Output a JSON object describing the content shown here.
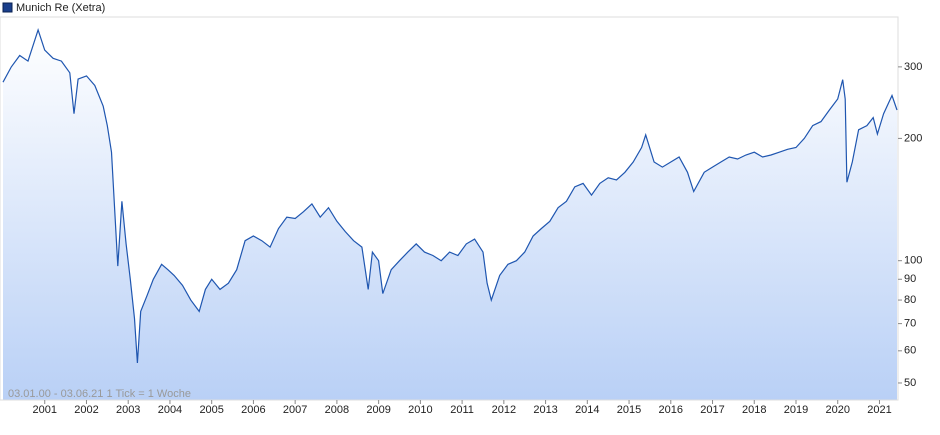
{
  "chart_data": {
    "type": "line",
    "log_scale": true,
    "grid": false,
    "legend": "top-left",
    "annotation": "03.01.00 - 03.06.21   1 Tick = 1 Woche",
    "x": [
      2000.0,
      2000.2,
      2000.4,
      2000.6,
      2000.84,
      2001.0,
      2001.2,
      2001.4,
      2001.6,
      2001.7,
      2001.8,
      2002.0,
      2002.2,
      2002.4,
      2002.5,
      2002.6,
      2002.75,
      2002.85,
      2002.95,
      2003.05,
      2003.15,
      2003.22,
      2003.3,
      2003.45,
      2003.6,
      2003.8,
      2003.95,
      2004.1,
      2004.3,
      2004.5,
      2004.7,
      2004.85,
      2005.0,
      2005.2,
      2005.4,
      2005.6,
      2005.8,
      2006.0,
      2006.2,
      2006.4,
      2006.6,
      2006.8,
      2007.0,
      2007.2,
      2007.4,
      2007.6,
      2007.8,
      2008.0,
      2008.2,
      2008.4,
      2008.6,
      2008.75,
      2008.85,
      2009.0,
      2009.1,
      2009.3,
      2009.5,
      2009.7,
      2009.9,
      2010.1,
      2010.3,
      2010.5,
      2010.7,
      2010.9,
      2011.1,
      2011.3,
      2011.5,
      2011.6,
      2011.7,
      2011.9,
      2012.1,
      2012.3,
      2012.5,
      2012.7,
      2012.9,
      2013.1,
      2013.3,
      2013.5,
      2013.7,
      2013.9,
      2014.1,
      2014.3,
      2014.5,
      2014.7,
      2014.9,
      2015.1,
      2015.3,
      2015.4,
      2015.6,
      2015.8,
      2016.0,
      2016.2,
      2016.4,
      2016.55,
      2016.8,
      2017.0,
      2017.2,
      2017.4,
      2017.6,
      2017.8,
      2018.0,
      2018.2,
      2018.4,
      2018.6,
      2018.8,
      2019.0,
      2019.2,
      2019.4,
      2019.6,
      2019.8,
      2020.0,
      2020.12,
      2020.18,
      2020.22,
      2020.35,
      2020.5,
      2020.7,
      2020.85,
      2020.95,
      2021.1,
      2021.3,
      2021.42
    ],
    "series": [
      {
        "name": "Munich Re (Xetra)",
        "color": "#1f56b0",
        "values": [
          275,
          300,
          320,
          310,
          370,
          330,
          315,
          310,
          290,
          230,
          280,
          285,
          270,
          240,
          215,
          185,
          97,
          140,
          110,
          90,
          72,
          56,
          75,
          82,
          90,
          98,
          95,
          92,
          87,
          80,
          75,
          85,
          90,
          85,
          88,
          95,
          112,
          115,
          112,
          108,
          120,
          128,
          127,
          132,
          138,
          128,
          135,
          125,
          118,
          112,
          108,
          85,
          105,
          100,
          83,
          95,
          100,
          105,
          110,
          105,
          103,
          100,
          105,
          103,
          110,
          113,
          105,
          88,
          80,
          92,
          98,
          100,
          105,
          115,
          120,
          125,
          135,
          140,
          152,
          155,
          145,
          155,
          160,
          158,
          165,
          175,
          190,
          204,
          175,
          170,
          175,
          180,
          165,
          148,
          165,
          170,
          175,
          180,
          178,
          182,
          185,
          180,
          182,
          185,
          188,
          190,
          200,
          215,
          220,
          235,
          250,
          279,
          250,
          156,
          175,
          210,
          215,
          225,
          205,
          230,
          255,
          235
        ]
      }
    ],
    "xlim": [
      2000.0,
      2021.42
    ],
    "xticks": [
      2001,
      2002,
      2003,
      2004,
      2005,
      2006,
      2007,
      2008,
      2009,
      2010,
      2011,
      2012,
      2013,
      2014,
      2015,
      2016,
      2017,
      2018,
      2019,
      2020,
      2021
    ],
    "ylim": [
      45.4,
      398
    ],
    "yticks": [
      50,
      60,
      70,
      80,
      90,
      100,
      200,
      300
    ]
  }
}
